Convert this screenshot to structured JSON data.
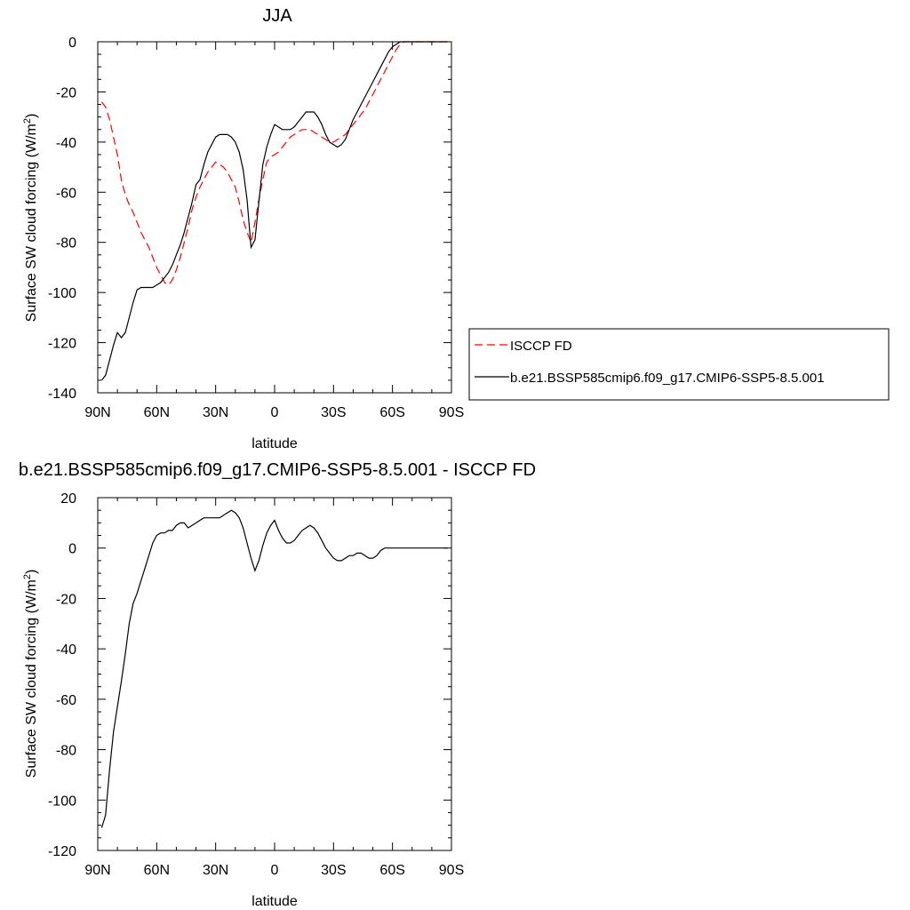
{
  "chart_data": [
    {
      "type": "line",
      "title": "JJA",
      "xlabel": "latitude",
      "ylabel_main": "Surface SW cloud forcing (W/m",
      "ylabel_sup": "2",
      "ylabel_end": ")",
      "xlim": [
        90,
        -90
      ],
      "ylim": [
        -140,
        0
      ],
      "xticks": [
        90,
        60,
        30,
        0,
        -30,
        -60,
        -90
      ],
      "xtick_labels": [
        "90N",
        "60N",
        "30N",
        "0",
        "30S",
        "60S",
        "90S"
      ],
      "yticks": [
        0,
        -20,
        -40,
        -60,
        -80,
        -100,
        -120,
        -140
      ],
      "ytick_labels": [
        "0",
        "-20",
        "-40",
        "-60",
        "-80",
        "-100",
        "-120",
        "-140"
      ],
      "legend_position": "right",
      "series": [
        {
          "name": "ISCCP FD",
          "color": "#ff0000",
          "dash": "dashed",
          "x": [
            88,
            86,
            84,
            82,
            80,
            78,
            76,
            74,
            72,
            70,
            68,
            66,
            64,
            62,
            60,
            58,
            56,
            54,
            52,
            50,
            48,
            46,
            44,
            42,
            40,
            38,
            36,
            34,
            32,
            30,
            28,
            26,
            24,
            22,
            20,
            18,
            16,
            14,
            12,
            10,
            8,
            6,
            4,
            2,
            0,
            -2,
            -4,
            -6,
            -8,
            -10,
            -12,
            -14,
            -16,
            -18,
            -20,
            -22,
            -24,
            -26,
            -28,
            -30,
            -32,
            -34,
            -36,
            -38,
            -40,
            -42,
            -44,
            -46,
            -48,
            -50,
            -52,
            -54,
            -56,
            -58,
            -60,
            -62,
            -64,
            -66,
            -68,
            -70,
            -72,
            -74,
            -76,
            -78,
            -80,
            -82,
            -84,
            -86,
            -88
          ],
          "values": [
            -24,
            -26,
            -31,
            -38,
            -45,
            -55,
            -61,
            -65,
            -68,
            -72,
            -76,
            -79,
            -82,
            -86,
            -90,
            -93,
            -96,
            -97,
            -95,
            -91,
            -86,
            -80,
            -74,
            -67,
            -62,
            -58,
            -55,
            -52,
            -50,
            -48,
            -49,
            -50,
            -52,
            -55,
            -58,
            -64,
            -71,
            -76,
            -80,
            -72,
            -63,
            -55,
            -48,
            -46,
            -45,
            -44,
            -42,
            -40,
            -38,
            -37,
            -36,
            -35,
            -35,
            -35,
            -36,
            -37,
            -38,
            -39,
            -40,
            -40,
            -39,
            -38,
            -37,
            -35,
            -33,
            -31,
            -29,
            -27,
            -24,
            -21,
            -18,
            -15,
            -12,
            -9,
            -6,
            -3,
            -1,
            0,
            0,
            0,
            0,
            0,
            0,
            0,
            0,
            0,
            0,
            0,
            0
          ]
        },
        {
          "name": "b.e21.BSSP585cmip6.f09_g17.CMIP6-SSP5-8.5.001",
          "color": "#000000",
          "dash": "solid",
          "x": [
            88,
            86,
            84,
            82,
            80,
            78,
            76,
            74,
            72,
            70,
            68,
            66,
            64,
            62,
            60,
            58,
            56,
            54,
            52,
            50,
            48,
            46,
            44,
            42,
            40,
            38,
            36,
            34,
            32,
            30,
            28,
            26,
            24,
            22,
            20,
            18,
            16,
            14,
            12,
            10,
            8,
            6,
            4,
            2,
            0,
            -2,
            -4,
            -6,
            -8,
            -10,
            -12,
            -14,
            -16,
            -18,
            -20,
            -22,
            -24,
            -26,
            -28,
            -30,
            -32,
            -34,
            -36,
            -38,
            -40,
            -42,
            -44,
            -46,
            -48,
            -50,
            -52,
            -54,
            -56,
            -58,
            -60,
            -62,
            -64,
            -66,
            -68,
            -70,
            -72,
            -74,
            -76,
            -78,
            -80,
            -82,
            -84,
            -86,
            -88
          ],
          "values": [
            -135,
            -133,
            -127,
            -121,
            -116,
            -118,
            -116,
            -110,
            -104,
            -99,
            -98,
            -98,
            -98,
            -98,
            -97,
            -96,
            -94,
            -92,
            -89,
            -85,
            -81,
            -76,
            -70,
            -64,
            -57,
            -55,
            -49,
            -44,
            -41,
            -38,
            -37,
            -37,
            -37,
            -38,
            -40,
            -44,
            -51,
            -63,
            -82,
            -79,
            -64,
            -49,
            -42,
            -37,
            -33,
            -34,
            -35,
            -35,
            -35,
            -34,
            -32,
            -30,
            -28,
            -28,
            -28,
            -30,
            -33,
            -37,
            -40,
            -41,
            -42,
            -41,
            -39,
            -35,
            -31,
            -28,
            -25,
            -22,
            -19,
            -16,
            -13,
            -10,
            -7,
            -4,
            -2,
            -1,
            0,
            0,
            0,
            0,
            0,
            0,
            0,
            0,
            0,
            0,
            0,
            0,
            0
          ]
        }
      ]
    },
    {
      "type": "line",
      "title": "b.e21.BSSP585cmip6.f09_g17.CMIP6-SSP5-8.5.001 - ISCCP FD",
      "xlabel": "latitude",
      "ylabel_main": "Surface SW cloud forcing (W/m",
      "ylabel_sup": "2",
      "ylabel_end": ")",
      "xlim": [
        90,
        -90
      ],
      "ylim": [
        -120,
        20
      ],
      "xticks": [
        90,
        60,
        30,
        0,
        -30,
        -60,
        -90
      ],
      "xtick_labels": [
        "90N",
        "60N",
        "30N",
        "0",
        "30S",
        "60S",
        "90S"
      ],
      "yticks": [
        20,
        0,
        -20,
        -40,
        -60,
        -80,
        -100,
        -120
      ],
      "ytick_labels": [
        "20",
        "0",
        "-20",
        "-40",
        "-60",
        "-80",
        "-100",
        "-120"
      ],
      "series": [
        {
          "color": "#000000",
          "dash": "solid",
          "x": [
            88,
            86,
            84,
            82,
            80,
            78,
            76,
            74,
            72,
            70,
            68,
            66,
            64,
            62,
            60,
            58,
            56,
            54,
            52,
            50,
            48,
            46,
            44,
            42,
            40,
            38,
            36,
            34,
            32,
            30,
            28,
            26,
            24,
            22,
            20,
            18,
            16,
            14,
            12,
            10,
            8,
            6,
            4,
            2,
            0,
            -2,
            -4,
            -6,
            -8,
            -10,
            -12,
            -14,
            -16,
            -18,
            -20,
            -22,
            -24,
            -26,
            -28,
            -30,
            -32,
            -34,
            -36,
            -38,
            -40,
            -42,
            -44,
            -46,
            -48,
            -50,
            -52,
            -54,
            -56,
            -58,
            -60,
            -62,
            -64,
            -66,
            -68,
            -70,
            -72,
            -74,
            -76,
            -78,
            -80,
            -82,
            -84,
            -86,
            -88
          ],
          "values": [
            -111,
            -106,
            -88,
            -73,
            -63,
            -53,
            -42,
            -30,
            -22,
            -18,
            -13,
            -8,
            -3,
            2,
            5,
            6,
            6,
            7,
            7,
            9,
            10,
            10,
            8,
            9,
            10,
            11,
            12,
            12,
            12,
            12,
            12,
            13,
            14,
            15,
            14,
            12,
            8,
            2,
            -4,
            -9,
            -5,
            1,
            6,
            9,
            11,
            7,
            4,
            2,
            2,
            3,
            5,
            7,
            8,
            9,
            8,
            6,
            3,
            0,
            -2,
            -4,
            -5,
            -5,
            -4,
            -3,
            -3,
            -2,
            -2,
            -3,
            -4,
            -4,
            -3,
            -1,
            0,
            0,
            0,
            0,
            0,
            0,
            0,
            0,
            0,
            0,
            0,
            0,
            0,
            0,
            0,
            0,
            0
          ]
        }
      ]
    }
  ]
}
